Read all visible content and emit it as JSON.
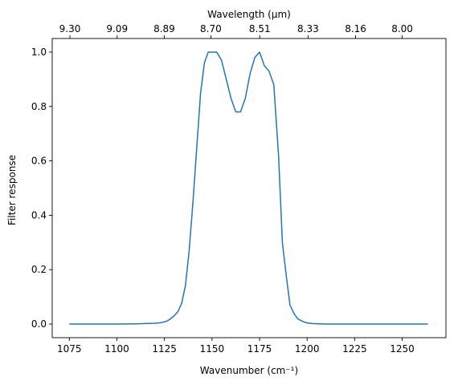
{
  "chart_data": {
    "type": "line",
    "xlabel": "Wavenumber (cm⁻¹)",
    "ylabel": "Filter response",
    "top_xlabel": "Wavelength (μm)",
    "xlim": [
      1066,
      1273
    ],
    "ylim": [
      -0.05,
      1.05
    ],
    "grid": false,
    "x_ticks": [
      1075,
      1100,
      1125,
      1150,
      1175,
      1200,
      1225,
      1250
    ],
    "x_tick_labels": [
      "1075",
      "1100",
      "1125",
      "1150",
      "1175",
      "1200",
      "1225",
      "1250"
    ],
    "y_ticks": [
      0.0,
      0.2,
      0.4,
      0.6,
      0.8,
      1.0
    ],
    "y_tick_labels": [
      "0.0",
      "0.2",
      "0.4",
      "0.6",
      "0.8",
      "1.0"
    ],
    "top_ticks": [
      1075.3,
      1100.1,
      1124.9,
      1149.4,
      1175.1,
      1200.5,
      1225.5,
      1250.0
    ],
    "top_tick_labels": [
      "9.30",
      "9.09",
      "8.89",
      "8.70",
      "8.51",
      "8.33",
      "8.16",
      "8.00"
    ],
    "series": [
      {
        "color": "#1f77b4",
        "x": [
          1075,
          1090,
          1100,
          1110,
          1115,
          1120,
          1123,
          1126,
          1128,
          1130,
          1132,
          1134,
          1136,
          1138,
          1140,
          1142,
          1144,
          1146,
          1148,
          1150,
          1152.5,
          1155,
          1157.5,
          1160,
          1162.5,
          1165,
          1167.5,
          1170,
          1172.5,
          1175,
          1177.5,
          1180,
          1182.5,
          1185,
          1187,
          1189,
          1191,
          1193,
          1195,
          1197,
          1199,
          1201,
          1203,
          1206,
          1210,
          1220,
          1240,
          1263.5
        ],
        "y": [
          0.0,
          0.0,
          0.0,
          0.001,
          0.002,
          0.003,
          0.005,
          0.01,
          0.018,
          0.03,
          0.045,
          0.075,
          0.14,
          0.27,
          0.45,
          0.65,
          0.85,
          0.96,
          1.0,
          1.0,
          1.0,
          0.97,
          0.9,
          0.83,
          0.78,
          0.78,
          0.83,
          0.92,
          0.98,
          1.0,
          0.95,
          0.93,
          0.88,
          0.62,
          0.3,
          0.18,
          0.07,
          0.04,
          0.02,
          0.012,
          0.006,
          0.003,
          0.002,
          0.001,
          0.0,
          0.0,
          0.0,
          0.0
        ]
      }
    ]
  }
}
